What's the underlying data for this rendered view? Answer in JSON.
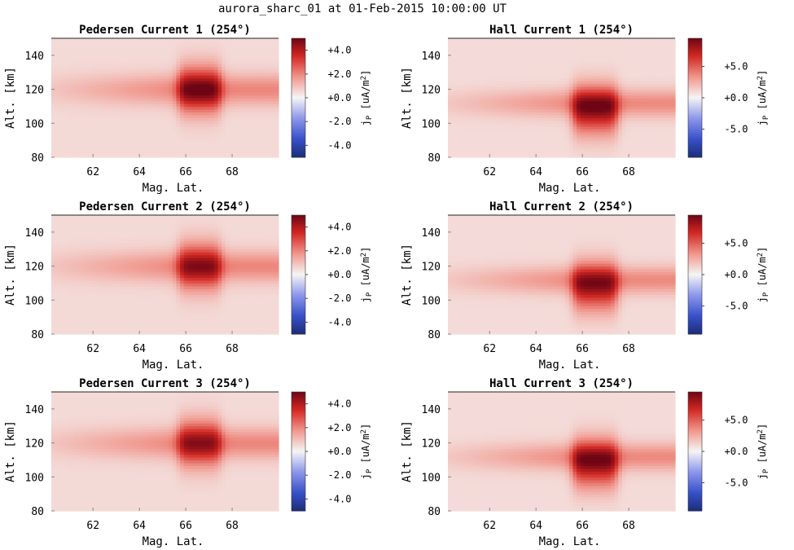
{
  "figure": {
    "title": "aurora_sharc_01 at 01-Feb-2015 10:00:00 UT"
  },
  "chart_data": [
    {
      "type": "heatmap",
      "title": "Pedersen Current 1 (254°)",
      "xlabel": "Mag. Lat.",
      "ylabel": "Alt. [km]",
      "xlim": [
        60.2,
        70
      ],
      "ylim": [
        80,
        150
      ],
      "xticks": [
        "62",
        "64",
        "66",
        "68"
      ],
      "yticks": [
        "80",
        "100",
        "120",
        "140"
      ],
      "colorbar": {
        "label": "j_P [uA/m^2]",
        "range": [
          -5,
          5
        ],
        "ticks": [
          4.0,
          2.0,
          0.0,
          -2.0,
          -4.0
        ],
        "tick_labels": [
          "+4.0",
          "+2.0",
          "+0.0",
          "-2.0",
          "-4.0"
        ]
      },
      "colormap": "blue-white-red (diverging)",
      "blob": {
        "band_center_alt": 120,
        "band_half_width_alt": 9,
        "band_peak": 1.5,
        "band_lat_range": [
          60.2,
          70
        ],
        "core_lat": [
          65.7,
          67.5
        ],
        "core_alt": [
          102,
          138
        ],
        "core_peak": 3.2
      },
      "background": 0.5
    },
    {
      "type": "heatmap",
      "title": "Hall Current 1 (254°)",
      "xlabel": "Mag. Lat.",
      "ylabel": "Alt. [km]",
      "xlim": [
        60.2,
        70
      ],
      "ylim": [
        80,
        150
      ],
      "xticks": [
        "62",
        "64",
        "66",
        "68"
      ],
      "yticks": [
        "80",
        "100",
        "120",
        "140"
      ],
      "colorbar": {
        "label": "j_P [uA/m^2]",
        "range": [
          -9.5,
          9.5
        ],
        "ticks": [
          5.0,
          0.0,
          -5.0
        ],
        "tick_labels": [
          "+5.0",
          "+0.0",
          "-5.0"
        ]
      },
      "colormap": "blue-white-red (diverging)",
      "blob": {
        "band_center_alt": 112,
        "band_half_width_alt": 8,
        "band_peak": 2.8,
        "band_lat_range": [
          60.2,
          70
        ],
        "core_lat": [
          65.6,
          67.5
        ],
        "core_alt": [
          90,
          126
        ],
        "core_peak": 6.4
      },
      "background": 0.9
    },
    {
      "type": "heatmap",
      "title": "Pedersen Current 2 (254°)",
      "xlabel": "Mag. Lat.",
      "ylabel": "Alt. [km]",
      "xlim": [
        60.2,
        70
      ],
      "ylim": [
        80,
        150
      ],
      "xticks": [
        "62",
        "64",
        "66",
        "68"
      ],
      "yticks": [
        "80",
        "100",
        "120",
        "140"
      ],
      "colorbar": {
        "label": "j_P [uA/m^2]",
        "range": [
          -5,
          5
        ],
        "ticks": [
          4.0,
          2.0,
          0.0,
          -2.0,
          -4.0
        ],
        "tick_labels": [
          "+4.0",
          "+2.0",
          "+0.0",
          "-2.0",
          "-4.0"
        ]
      },
      "colormap": "blue-white-red (diverging)",
      "blob": {
        "band_center_alt": 120,
        "band_half_width_alt": 9,
        "band_peak": 1.5,
        "band_lat_range": [
          60.2,
          70
        ],
        "core_lat": [
          65.7,
          67.5
        ],
        "core_alt": [
          102,
          138
        ],
        "core_peak": 2.8
      },
      "background": 0.5
    },
    {
      "type": "heatmap",
      "title": "Hall Current 2 (254°)",
      "xlabel": "Mag. Lat.",
      "ylabel": "Alt. [km]",
      "xlim": [
        60.2,
        70
      ],
      "ylim": [
        80,
        150
      ],
      "xticks": [
        "62",
        "64",
        "66",
        "68"
      ],
      "yticks": [
        "80",
        "100",
        "120",
        "140"
      ],
      "colorbar": {
        "label": "j_P [uA/m^2]",
        "range": [
          -9.5,
          9.5
        ],
        "ticks": [
          5.0,
          0.0,
          -5.0
        ],
        "tick_labels": [
          "+5.0",
          "+0.0",
          "-5.0"
        ]
      },
      "colormap": "blue-white-red (diverging)",
      "blob": {
        "band_center_alt": 112,
        "band_half_width_alt": 8,
        "band_peak": 2.8,
        "band_lat_range": [
          60.2,
          70
        ],
        "core_lat": [
          65.6,
          67.5
        ],
        "core_alt": [
          90,
          126
        ],
        "core_peak": 6.0
      },
      "background": 0.9
    },
    {
      "type": "heatmap",
      "title": "Pedersen Current 3 (254°)",
      "xlabel": "Mag. Lat.",
      "ylabel": "Alt. [km]",
      "xlim": [
        60.2,
        70
      ],
      "ylim": [
        80,
        150
      ],
      "xticks": [
        "62",
        "64",
        "66",
        "68"
      ],
      "yticks": [
        "80",
        "100",
        "120",
        "140"
      ],
      "colorbar": {
        "label": "j_P [uA/m^2]",
        "range": [
          -5,
          5
        ],
        "ticks": [
          4.0,
          2.0,
          0.0,
          -2.0,
          -4.0
        ],
        "tick_labels": [
          "+4.0",
          "+2.0",
          "+0.0",
          "-2.0",
          "-4.0"
        ]
      },
      "colormap": "blue-white-red (diverging)",
      "blob": {
        "band_center_alt": 120,
        "band_half_width_alt": 9,
        "band_peak": 1.5,
        "band_lat_range": [
          60.2,
          70
        ],
        "core_lat": [
          65.7,
          67.5
        ],
        "core_alt": [
          102,
          138
        ],
        "core_peak": 2.7
      },
      "background": 0.5
    },
    {
      "type": "heatmap",
      "title": "Hall Current 3 (254°)",
      "xlabel": "Mag. Lat.",
      "ylabel": "Alt. [km]",
      "xlim": [
        60.2,
        70
      ],
      "ylim": [
        80,
        150
      ],
      "xticks": [
        "62",
        "64",
        "66",
        "68"
      ],
      "yticks": [
        "80",
        "100",
        "120",
        "140"
      ],
      "colorbar": {
        "label": "j_P [uA/m^2]",
        "range": [
          -9.5,
          9.5
        ],
        "ticks": [
          5.0,
          0.0,
          -5.0
        ],
        "tick_labels": [
          "+5.0",
          "+0.0",
          "-5.0"
        ]
      },
      "colormap": "blue-white-red (diverging)",
      "blob": {
        "band_center_alt": 112,
        "band_half_width_alt": 8,
        "band_peak": 2.8,
        "band_lat_range": [
          60.2,
          70
        ],
        "core_lat": [
          65.6,
          67.5
        ],
        "core_alt": [
          90,
          126
        ],
        "core_peak": 6.3
      },
      "background": 0.9
    }
  ]
}
